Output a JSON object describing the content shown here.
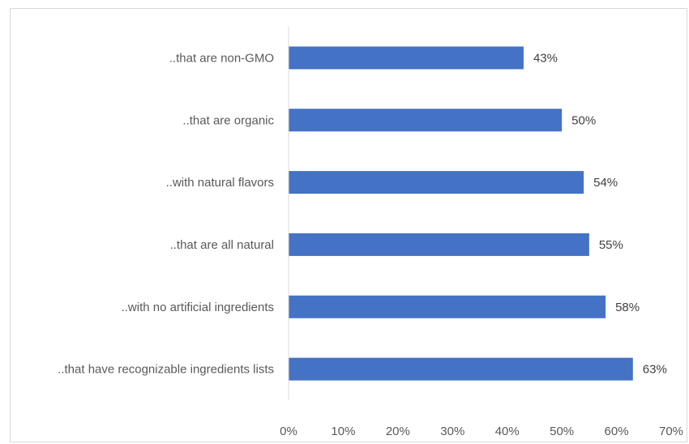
{
  "chart_data": {
    "type": "bar",
    "orientation": "horizontal",
    "categories": [
      "..that are non-GMO",
      "..that are organic",
      "..with natural flavors",
      "..that are all natural",
      "..with no artificial ingredients",
      "..that have recognizable ingredients lists"
    ],
    "values": [
      43,
      50,
      54,
      55,
      58,
      63
    ],
    "value_labels": [
      "43%",
      "50%",
      "54%",
      "55%",
      "58%",
      "63%"
    ],
    "xlim": [
      0,
      70
    ],
    "x_ticks": [
      0,
      10,
      20,
      30,
      40,
      50,
      60,
      70
    ],
    "x_tick_labels": [
      "0%",
      "10%",
      "20%",
      "30%",
      "40%",
      "50%",
      "60%",
      "70%"
    ],
    "bar_color": "#4472c4",
    "grid": false,
    "legend": "none"
  }
}
